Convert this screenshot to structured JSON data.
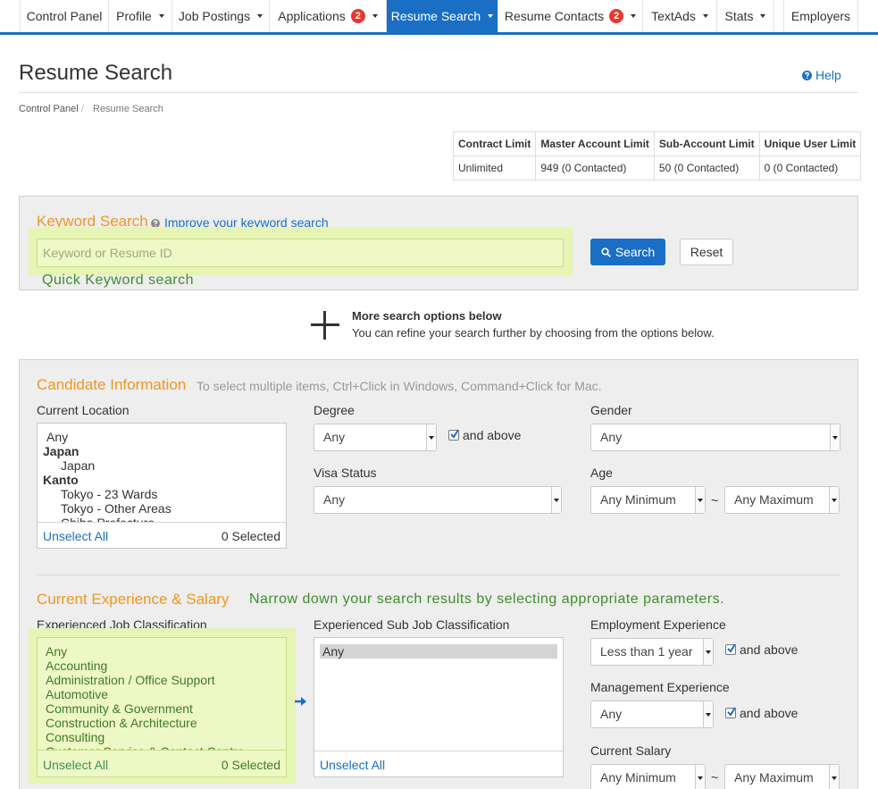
{
  "nav": {
    "items": [
      {
        "label": "Control Panel"
      },
      {
        "label": "Profile"
      },
      {
        "label": "Job Postings"
      },
      {
        "label": "Applications",
        "badge": 2
      },
      {
        "label": "Resume Search"
      },
      {
        "label": "Resume Contacts",
        "badge": 2
      },
      {
        "label": "TextAds"
      },
      {
        "label": "Stats"
      },
      {
        "label": "Employers"
      }
    ]
  },
  "header": {
    "title": "Resume Search",
    "help": "Help"
  },
  "breadcrumb": {
    "items": [
      "Control Panel",
      "Resume Search"
    ],
    "separator": "/"
  },
  "limits": {
    "headers": [
      "Contract Limit",
      "Master Account Limit",
      "Sub-Account Limit",
      "Unique User Limit"
    ],
    "rows": [
      [
        "Unlimited",
        "949 (0 Contacted)",
        "50 (0 Contacted)",
        "0 (0 Contacted)"
      ]
    ]
  },
  "keyword": {
    "heading": "Keyword Search",
    "help_link": "Improve your keyword search",
    "placeholder": "Keyword or Resume ID",
    "search_button": "Search",
    "reset_button": "Reset",
    "annotation": "Quick Keyword search"
  },
  "more_options": {
    "title": "More search options below",
    "text": "You can refine your search further by choosing from the options below."
  },
  "candidate": {
    "heading": "Candidate Information",
    "hint": "To select multiple items, Ctrl+Click in Windows, Command+Click for Mac.",
    "location": {
      "label": "Current Location",
      "options": [
        "Any",
        "Japan",
        "Japan",
        "Kanto",
        "Tokyo - 23 Wards",
        "Tokyo - Other Areas",
        "Chiba Prefecture"
      ],
      "unselect": "Unselect All",
      "selected": "0 Selected"
    },
    "degree": {
      "label": "Degree",
      "value": "Any",
      "and_above": "and above"
    },
    "visa": {
      "label": "Visa Status",
      "value": "Any"
    },
    "gender": {
      "label": "Gender",
      "value": "Any"
    },
    "age": {
      "label": "Age",
      "min": "Any Minimum",
      "separator": "~",
      "max": "Any Maximum"
    }
  },
  "experience": {
    "heading": "Current Experience & Salary",
    "annotation": "Narrow down your search results by selecting appropriate parameters.",
    "job_class": {
      "label": "Experienced Job Classification",
      "options": [
        "Any",
        "Accounting",
        "Administration / Office Support",
        "Automotive",
        "Community & Government",
        "Construction & Architecture",
        "Consulting",
        "Customer Service & Contact Centre"
      ],
      "unselect": "Unselect All",
      "selected": "0 Selected"
    },
    "sub_class": {
      "label": "Experienced Sub Job Classification",
      "options": [
        "Any"
      ],
      "unselect": "Unselect All"
    },
    "employment": {
      "label": "Employment Experience",
      "value": "Less than 1 year",
      "and_above": "and above"
    },
    "management": {
      "label": "Management Experience",
      "value": "Any",
      "and_above": "and above"
    },
    "salary": {
      "label": "Current Salary",
      "min": "Any Minimum",
      "separator": "~",
      "max": "Any Maximum"
    }
  }
}
